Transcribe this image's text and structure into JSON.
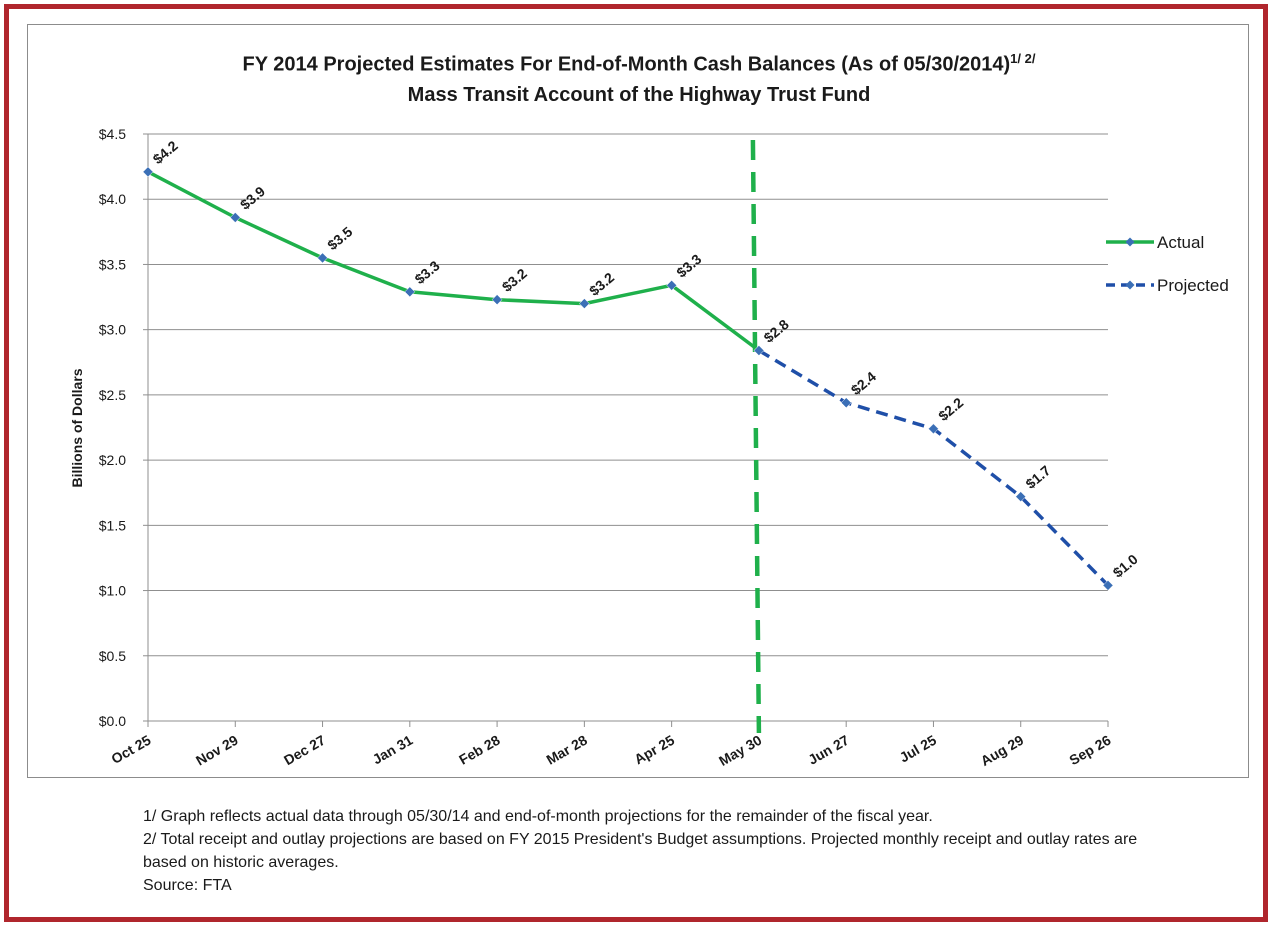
{
  "chart_data": {
    "type": "line",
    "title": "FY 2014 Projected Estimates For End-of-Month Cash Balances (As of 05/30/2014)",
    "title_sup": "1/ 2/",
    "subtitle": "Mass Transit Account of the Highway Trust Fund",
    "ylabel": "Billions of Dollars",
    "xlabel": "",
    "ylim": [
      0,
      4.5
    ],
    "ytick_step": 0.5,
    "yticks": [
      "$0.0",
      "$0.5",
      "$1.0",
      "$1.5",
      "$2.0",
      "$2.5",
      "$3.0",
      "$3.5",
      "$4.0",
      "$4.5"
    ],
    "categories": [
      "Oct 25",
      "Nov 29",
      "Dec 27",
      "Jan 31",
      "Feb 28",
      "Mar 28",
      "Apr 25",
      "May 30",
      "Jun 27",
      "Jul 25",
      "Aug 29",
      "Sep 26"
    ],
    "grid": true,
    "legend_position": "right",
    "divider_category": "May 30",
    "series": [
      {
        "name": "Actual",
        "color": "#1fb04b",
        "style": "solid",
        "x": [
          "Oct 25",
          "Nov 29",
          "Dec 27",
          "Jan 31",
          "Feb 28",
          "Mar 28",
          "Apr 25",
          "May 30"
        ],
        "values": [
          4.21,
          3.86,
          3.55,
          3.29,
          3.23,
          3.2,
          3.34,
          2.84
        ],
        "labels": [
          "$4.2",
          "$3.9",
          "$3.5",
          "$3.3",
          "$3.2",
          "$3.2",
          "$3.3",
          "$2.8"
        ]
      },
      {
        "name": "Projected",
        "color": "#1f4fa8",
        "style": "dashed",
        "x": [
          "May 30",
          "Jun 27",
          "Jul 25",
          "Aug 29",
          "Sep 26"
        ],
        "values": [
          2.84,
          2.44,
          2.24,
          1.72,
          1.04
        ],
        "labels": [
          "",
          "$2.4",
          "$2.2",
          "$1.7",
          "$1.0"
        ]
      }
    ],
    "divider_color": "#1fb04b",
    "marker_color": "#3b6fb6"
  },
  "notes": [
    "1/ Graph reflects actual data through 05/30/14 and end-of-month projections for the remainder of the fiscal year.",
    "2/ Total receipt and outlay projections are based on FY 2015 President's Budget assumptions.  Projected monthly receipt and outlay rates are based on historic averages.",
    "Source: FTA"
  ]
}
